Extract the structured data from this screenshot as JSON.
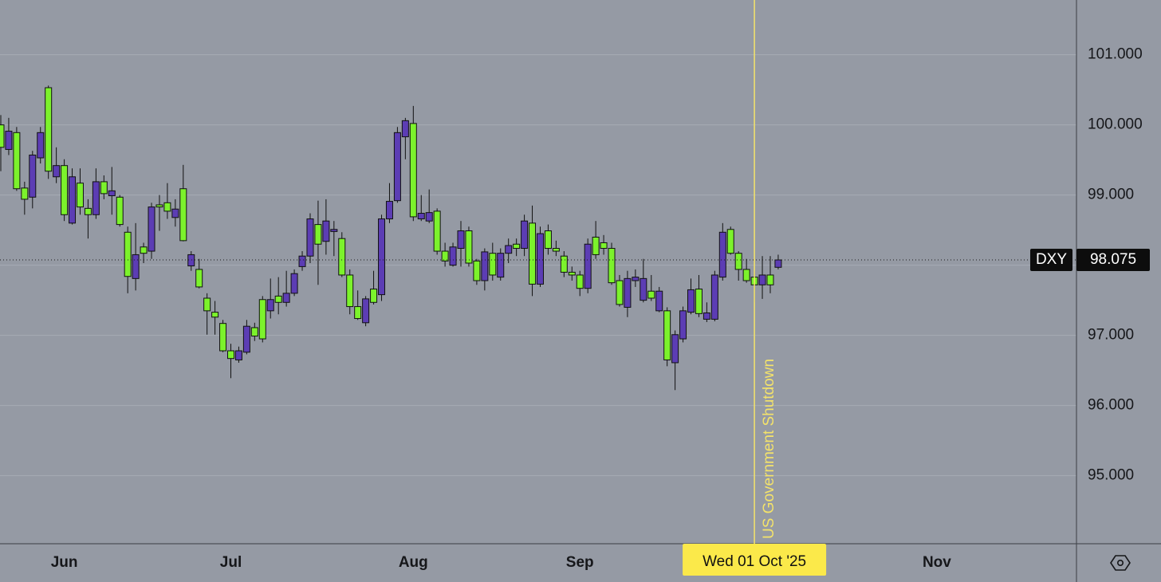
{
  "chart_data": {
    "type": "candlestick",
    "background": "#959aa4",
    "up_color": "#5c3db4",
    "down_color": "#7cf22c",
    "grid": true,
    "ylim": [
      94.03,
      101.78
    ],
    "yticks": [
      {
        "value": 95,
        "label": "95.000"
      },
      {
        "value": 96,
        "label": "96.000"
      },
      {
        "value": 97,
        "label": "97.000"
      },
      {
        "value": 98,
        "label": "98.000"
      },
      {
        "value": 99,
        "label": "99.000"
      },
      {
        "value": 100,
        "label": "100.000"
      },
      {
        "value": 101,
        "label": "101.000"
      }
    ],
    "xlim": [
      -0.1,
      135.6
    ],
    "xticks": [
      {
        "value": 8,
        "label": "Jun"
      },
      {
        "value": 29,
        "label": "Jul"
      },
      {
        "value": 52,
        "label": "Aug"
      },
      {
        "value": 73,
        "label": "Sep"
      },
      {
        "value": 118,
        "label": "Nov"
      }
    ],
    "last_price": 98.075,
    "annotations": [
      {
        "x": 95,
        "text": "US Government Shutdown",
        "color": "#f4e36a"
      }
    ],
    "crosshair": {
      "x": 95,
      "label": "Wed 01 Oct '25",
      "color": "#fbe94a"
    },
    "series": [
      {
        "name": "DXY",
        "open": [
          100.0,
          99.65,
          99.89,
          99.1,
          98.97,
          99.53,
          100.53,
          99.26,
          99.42,
          98.6,
          99.17,
          98.81,
          98.72,
          99.19,
          98.99,
          98.97,
          98.47,
          97.81,
          98.26,
          98.2,
          98.86,
          98.89,
          98.68,
          99.09,
          97.99,
          97.94,
          97.53,
          97.33,
          97.17,
          96.78,
          96.65,
          96.76,
          97.11,
          97.51,
          97.35,
          97.56,
          97.47,
          97.6,
          97.98,
          98.13,
          98.58,
          98.34,
          98.48,
          98.38,
          97.86,
          97.41,
          97.18,
          97.66,
          97.58,
          98.66,
          98.92,
          99.83,
          100.02,
          98.66,
          98.63,
          98.77,
          98.2,
          98.0,
          98.24,
          98.49,
          98.06,
          97.78,
          98.17,
          97.83,
          98.17,
          98.3,
          98.24,
          98.6,
          97.73,
          98.49,
          98.24,
          98.13,
          97.9,
          97.86,
          97.67,
          98.4,
          98.32,
          98.24,
          97.78,
          97.4,
          97.78,
          97.5,
          97.63,
          97.35,
          97.35,
          96.61,
          96.95,
          97.33,
          97.66,
          97.23,
          97.23,
          97.83,
          98.51,
          98.17,
          97.94,
          97.83,
          97.72,
          97.86,
          97.97
        ],
        "high": [
          100.14,
          100.1,
          99.97,
          99.19,
          99.63,
          99.97,
          100.56,
          99.68,
          99.51,
          99.38,
          99.38,
          98.94,
          99.38,
          99.28,
          99.4,
          99.0,
          98.55,
          98.6,
          98.32,
          98.89,
          99.0,
          99.17,
          98.94,
          99.43,
          98.2,
          98.09,
          97.6,
          97.49,
          97.22,
          96.88,
          96.84,
          97.22,
          97.18,
          97.56,
          97.81,
          97.83,
          97.92,
          97.94,
          98.2,
          98.74,
          98.92,
          98.94,
          98.63,
          98.47,
          97.94,
          97.64,
          97.56,
          97.92,
          98.72,
          99.17,
          99.97,
          100.1,
          100.27,
          99.0,
          99.08,
          98.81,
          98.32,
          98.32,
          98.63,
          98.55,
          98.09,
          98.24,
          98.32,
          98.24,
          98.38,
          98.38,
          98.72,
          98.85,
          98.55,
          98.58,
          98.35,
          98.2,
          97.98,
          97.92,
          98.38,
          98.63,
          98.43,
          98.32,
          97.86,
          97.92,
          97.94,
          98.09,
          97.86,
          97.69,
          97.4,
          97.07,
          97.41,
          97.81,
          97.86,
          97.47,
          97.92,
          98.6,
          98.55,
          98.2,
          98.09,
          97.92,
          98.13,
          98.13,
          98.15
        ],
        "low": [
          99.34,
          99.57,
          99.06,
          98.72,
          98.81,
          99.45,
          99.23,
          99.17,
          98.63,
          98.58,
          98.72,
          98.38,
          98.66,
          98.94,
          98.72,
          98.55,
          97.6,
          97.64,
          98.03,
          98.09,
          98.49,
          98.66,
          98.55,
          98.34,
          97.92,
          97.67,
          97.01,
          97.01,
          96.76,
          96.39,
          96.61,
          96.73,
          96.92,
          96.9,
          97.24,
          97.3,
          97.41,
          97.56,
          97.92,
          98.03,
          97.72,
          98.15,
          98.13,
          97.83,
          97.3,
          97.22,
          97.13,
          97.44,
          97.49,
          98.6,
          98.89,
          99.51,
          98.63,
          98.63,
          98.6,
          98.15,
          97.98,
          97.98,
          97.98,
          97.98,
          97.72,
          97.64,
          97.78,
          97.78,
          98.03,
          98.13,
          98.13,
          97.56,
          97.69,
          98.15,
          98.13,
          97.83,
          97.78,
          97.56,
          97.6,
          98.09,
          98.15,
          97.72,
          97.41,
          97.26,
          97.69,
          97.47,
          97.49,
          97.33,
          96.56,
          96.22,
          96.9,
          97.3,
          97.26,
          97.19,
          97.2,
          97.78,
          98.15,
          97.78,
          97.75,
          97.47,
          97.52,
          97.6,
          97.94
        ],
        "close": [
          99.68,
          99.91,
          99.09,
          98.94,
          99.57,
          99.89,
          99.34,
          99.42,
          98.72,
          99.26,
          98.83,
          98.72,
          99.19,
          99.02,
          99.06,
          98.58,
          97.84,
          98.15,
          98.17,
          98.83,
          98.83,
          98.77,
          98.8,
          98.35,
          98.15,
          97.69,
          97.35,
          97.26,
          96.78,
          96.67,
          96.78,
          97.13,
          96.99,
          96.95,
          97.51,
          97.47,
          97.6,
          97.88,
          98.13,
          98.66,
          98.3,
          98.63,
          98.51,
          97.86,
          97.41,
          97.24,
          97.52,
          97.47,
          98.66,
          98.91,
          99.89,
          100.06,
          98.69,
          98.74,
          98.75,
          98.2,
          98.06,
          98.26,
          98.49,
          98.03,
          97.78,
          98.19,
          97.86,
          98.17,
          98.28,
          98.24,
          98.63,
          97.73,
          98.45,
          98.24,
          98.2,
          97.9,
          97.86,
          97.67,
          98.3,
          98.15,
          98.24,
          97.75,
          97.44,
          97.81,
          97.83,
          97.81,
          97.53,
          97.63,
          96.65,
          97.01,
          97.35,
          97.65,
          97.31,
          97.32,
          97.86,
          98.47,
          98.17,
          97.94,
          97.78,
          97.72,
          97.86,
          97.72,
          98.075
        ]
      }
    ]
  }
}
